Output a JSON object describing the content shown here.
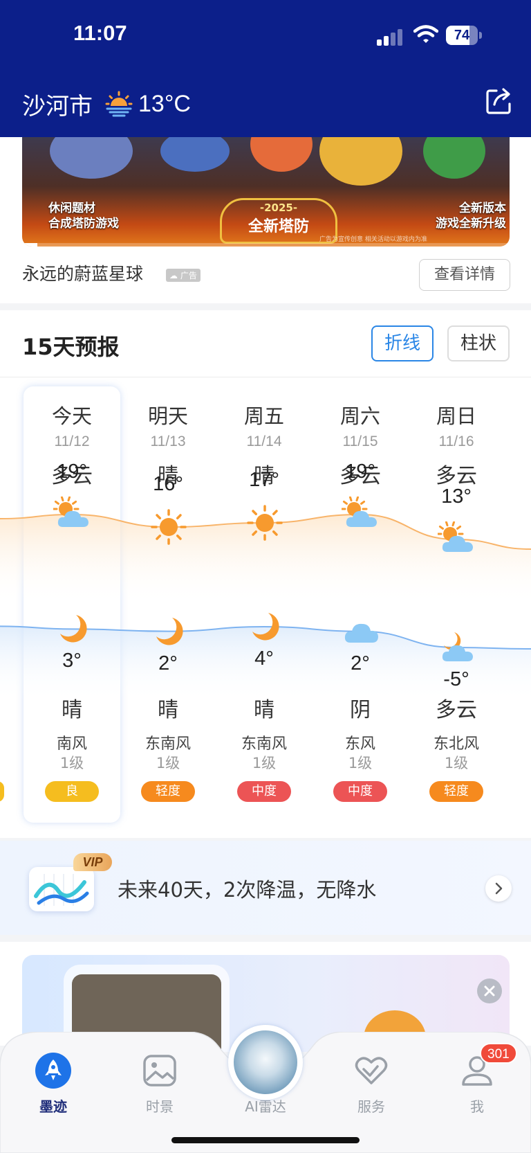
{
  "status_bar": {
    "time": "11:07",
    "battery": "74",
    "battery_level": 0.74
  },
  "header": {
    "city": "沙河市",
    "current_temp": "13°C",
    "current_icon": "sunrise-icon",
    "share_icon": "share-icon"
  },
  "ad": {
    "left_text": "休闲题材\n合成塔防游戏",
    "badge_year": "-2025-",
    "badge_text": "全新塔防",
    "right_text": "全新版本\n游戏全新升级",
    "fine_print": "广告为宣传创意 相关活动以游戏内为准",
    "name": "永远的蔚蓝星球",
    "tag": "广告",
    "detail_button": "查看详情"
  },
  "forecast": {
    "title": "15天预报",
    "toggle_line": "折线",
    "toggle_bar": "柱状",
    "colors": {
      "high_line": "#f8b46a",
      "low_line": "#7eb3f0",
      "aq_good": "#f5bd1f",
      "aq_light": "#f68a1e",
      "aq_moderate": "#ec5455"
    },
    "days": [
      {
        "day": "今天",
        "date": "11/12",
        "day_weather": "多云",
        "high": "19°",
        "high_value": 19,
        "day_icon": "partly-cloudy-icon",
        "night_icon": "moon-icon",
        "low": "3°",
        "low_value": 3,
        "night_weather": "晴",
        "wind_dir": "南风",
        "wind_level": "1级",
        "aqi": "良",
        "aqi_color": "#f5bd1f"
      },
      {
        "day": "明天",
        "date": "11/13",
        "day_weather": "晴",
        "high": "16°",
        "high_value": 16,
        "day_icon": "sun-icon",
        "night_icon": "moon-icon",
        "low": "2°",
        "low_value": 2,
        "night_weather": "晴",
        "wind_dir": "东南风",
        "wind_level": "1级",
        "aqi": "轻度",
        "aqi_color": "#f68a1e"
      },
      {
        "day": "周五",
        "date": "11/14",
        "day_weather": "晴",
        "high": "17°",
        "high_value": 17,
        "day_icon": "sun-icon",
        "night_icon": "moon-icon",
        "low": "4°",
        "low_value": 4,
        "night_weather": "晴",
        "wind_dir": "东南风",
        "wind_level": "1级",
        "aqi": "中度",
        "aqi_color": "#ec5455"
      },
      {
        "day": "周六",
        "date": "11/15",
        "day_weather": "多云",
        "high": "19°",
        "high_value": 19,
        "day_icon": "partly-cloudy-icon",
        "night_icon": "cloud-icon",
        "low": "2°",
        "low_value": 2,
        "night_weather": "阴",
        "wind_dir": "东风",
        "wind_level": "1级",
        "aqi": "中度",
        "aqi_color": "#ec5455"
      },
      {
        "day": "周日",
        "date": "11/16",
        "day_weather": "多云",
        "high": "13°",
        "high_value": 13,
        "day_icon": "partly-cloudy-icon",
        "night_icon": "partly-cloudy-night-icon",
        "low": "-5°",
        "low_value": -5,
        "night_weather": "多云",
        "wind_dir": "东北风",
        "wind_level": "1级",
        "aqi": "轻度",
        "aqi_color": "#f68a1e"
      }
    ]
  },
  "trend": {
    "vip": "VIP",
    "text": "未来40天，2次降温，无降水"
  },
  "tabbar": {
    "tabs": [
      {
        "label": "墨迹",
        "icon": "rocket-icon",
        "active": true
      },
      {
        "label": "时景",
        "icon": "picture-icon",
        "active": false
      },
      {
        "label": "AI雷达",
        "icon": "radar-icon",
        "active": false
      },
      {
        "label": "服务",
        "icon": "heart-handshake-icon",
        "active": false
      },
      {
        "label": "我",
        "icon": "user-icon",
        "active": false
      }
    ],
    "badge": "301"
  }
}
